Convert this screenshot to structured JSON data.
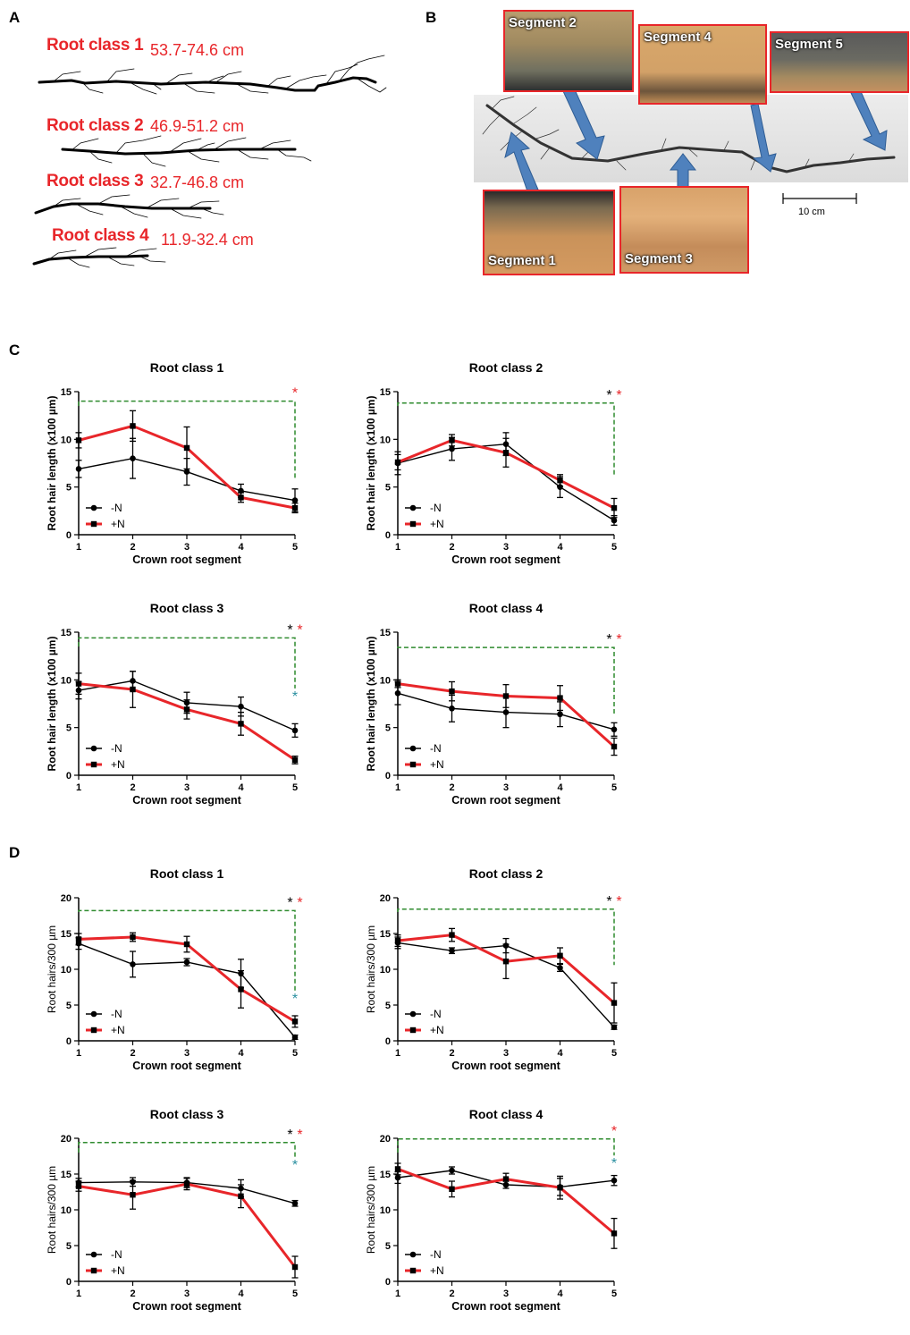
{
  "panels": {
    "A": "A",
    "B": "B",
    "C": "C",
    "D": "D"
  },
  "panelA": {
    "classes": [
      {
        "label": "Root class 1",
        "range": "53.7-74.6 cm"
      },
      {
        "label": "Root class 2",
        "range": "46.9-51.2 cm"
      },
      {
        "label": "Root class 3",
        "range": "32.7-46.8 cm"
      },
      {
        "label": "Root class 4",
        "range": "11.9-32.4 cm"
      }
    ]
  },
  "panelB": {
    "segments": [
      "Segment 1",
      "Segment 2",
      "Segment 3",
      "Segment 4",
      "Segment 5"
    ],
    "scale_label": "10 cm"
  },
  "colors": {
    "minusN": "#000000",
    "plusN": "#e8262a",
    "bracket": "#2e8b2e",
    "teal_star": "#2a8fa0",
    "label_red": "#e8262a",
    "arrow": "#4f81bd"
  },
  "chart_data": [
    {
      "id": "C1",
      "type": "line",
      "title": "Root class 1",
      "xlabel": "Crown root segment",
      "ylabel": "Root hair length (x100 µm)",
      "categories": [
        "1",
        "2",
        "3",
        "4",
        "5"
      ],
      "ylim": [
        0,
        15
      ],
      "yticks": [
        "0",
        "5",
        "10",
        "15"
      ],
      "series": [
        {
          "name": "-N",
          "values": [
            6.9,
            8.0,
            6.6,
            4.6,
            3.6
          ],
          "err": [
            0.9,
            2.1,
            1.4,
            0.7,
            1.2
          ]
        },
        {
          "name": "+N",
          "values": [
            9.9,
            11.4,
            9.1,
            3.9,
            2.8
          ],
          "err": [
            0.8,
            1.6,
            2.2,
            0.5,
            0.5
          ]
        }
      ],
      "stars": [
        {
          "symbol": "*",
          "color": "red"
        }
      ],
      "teal": false,
      "bracket_top": 14.0
    },
    {
      "id": "C2",
      "type": "line",
      "title": "Root class 2",
      "xlabel": "Crown root segment",
      "ylabel": "Root hair length (x100 µm)",
      "categories": [
        "1",
        "2",
        "3",
        "4",
        "5"
      ],
      "ylim": [
        0,
        15
      ],
      "yticks": [
        "0",
        "5",
        "10",
        "15"
      ],
      "series": [
        {
          "name": "-N",
          "values": [
            7.5,
            9.0,
            9.5,
            5.0,
            1.5
          ],
          "err": [
            1.2,
            1.2,
            1.2,
            1.1,
            0.5
          ]
        },
        {
          "name": "+N",
          "values": [
            7.6,
            9.9,
            8.6,
            5.7,
            2.8
          ],
          "err": [
            0.8,
            0.6,
            1.5,
            0.6,
            1.0
          ]
        }
      ],
      "stars": [
        {
          "symbol": "*",
          "color": "black"
        },
        {
          "symbol": "*",
          "color": "red"
        }
      ],
      "teal": false,
      "bracket_top": 13.8
    },
    {
      "id": "C3",
      "type": "line",
      "title": "Root class 3",
      "xlabel": "Crown root segment",
      "ylabel": "Root hair length (x100 µm)",
      "categories": [
        "1",
        "2",
        "3",
        "4",
        "5"
      ],
      "ylim": [
        0,
        15
      ],
      "yticks": [
        "0",
        "5",
        "10",
        "15"
      ],
      "series": [
        {
          "name": "-N",
          "values": [
            8.9,
            9.9,
            7.6,
            7.2,
            4.7
          ],
          "err": [
            0.9,
            1.0,
            1.1,
            1.0,
            0.7
          ]
        },
        {
          "name": "+N",
          "values": [
            9.6,
            9.0,
            6.9,
            5.4,
            1.6
          ],
          "err": [
            1.1,
            1.9,
            1.0,
            1.2,
            0.4
          ]
        }
      ],
      "stars": [
        {
          "symbol": "*",
          "color": "black"
        },
        {
          "symbol": "*",
          "color": "red"
        }
      ],
      "teal": true,
      "bracket_top": 14.4
    },
    {
      "id": "C4",
      "type": "line",
      "title": "Root class 4",
      "xlabel": "Crown root segment",
      "ylabel": "Root hair length (x100 µm)",
      "categories": [
        "1",
        "2",
        "3",
        "4",
        "5"
      ],
      "ylim": [
        0,
        15
      ],
      "yticks": [
        "0",
        "5",
        "10",
        "15"
      ],
      "series": [
        {
          "name": "-N",
          "values": [
            8.6,
            7.0,
            6.6,
            6.4,
            4.8
          ],
          "err": [
            1.2,
            1.4,
            1.6,
            1.3,
            0.7
          ]
        },
        {
          "name": "+N",
          "values": [
            9.6,
            8.8,
            8.3,
            8.1,
            3.0
          ],
          "err": [
            0.4,
            1.0,
            1.2,
            1.3,
            0.9
          ]
        }
      ],
      "stars": [
        {
          "symbol": "*",
          "color": "black"
        },
        {
          "symbol": "*",
          "color": "red"
        }
      ],
      "teal": false,
      "bracket_top": 13.4
    },
    {
      "id": "D1",
      "type": "line",
      "title": "Root class 1",
      "xlabel": "Crown root segment",
      "ylabel": "Root hairs/300 µm",
      "categories": [
        "1",
        "2",
        "3",
        "4",
        "5"
      ],
      "ylim": [
        0,
        20
      ],
      "yticks": [
        "0",
        "5",
        "10",
        "15",
        "20"
      ],
      "series": [
        {
          "name": "-N",
          "values": [
            13.6,
            10.7,
            11.0,
            9.4,
            0.5
          ],
          "err": [
            0.8,
            1.8,
            0.5,
            2.0,
            0.3
          ]
        },
        {
          "name": "+N",
          "values": [
            14.2,
            14.5,
            13.5,
            7.2,
            2.7
          ],
          "err": [
            0.8,
            0.6,
            1.1,
            2.6,
            0.8
          ]
        }
      ],
      "stars": [
        {
          "symbol": "*",
          "color": "black"
        },
        {
          "symbol": "*",
          "color": "red"
        }
      ],
      "teal": true,
      "bracket_top": 18.2
    },
    {
      "id": "D2",
      "type": "line",
      "title": "Root class 2",
      "xlabel": "Crown root segment",
      "ylabel": "Root hairs/300 µm",
      "categories": [
        "1",
        "2",
        "3",
        "4",
        "5"
      ],
      "ylim": [
        0,
        20
      ],
      "yticks": [
        "0",
        "5",
        "10",
        "15",
        "20"
      ],
      "series": [
        {
          "name": "-N",
          "values": [
            13.7,
            12.6,
            13.3,
            10.2,
            1.9
          ],
          "err": [
            0.8,
            0.4,
            1.0,
            0.5,
            0.3
          ]
        },
        {
          "name": "+N",
          "values": [
            14.0,
            14.8,
            11.1,
            11.9,
            5.3
          ],
          "err": [
            0.8,
            0.9,
            2.4,
            1.1,
            2.8
          ]
        }
      ],
      "stars": [
        {
          "symbol": "*",
          "color": "black"
        },
        {
          "symbol": "*",
          "color": "red"
        }
      ],
      "teal": false,
      "bracket_top": 18.4
    },
    {
      "id": "D3",
      "type": "line",
      "title": "Root class 3",
      "xlabel": "Crown root segment",
      "ylabel": "Root hairs/300 µm",
      "categories": [
        "1",
        "2",
        "3",
        "4",
        "5"
      ],
      "ylim": [
        0,
        20
      ],
      "yticks": [
        "0",
        "5",
        "10",
        "15",
        "20"
      ],
      "series": [
        {
          "name": "-N",
          "values": [
            13.8,
            13.9,
            13.8,
            13.0,
            10.9
          ],
          "err": [
            0.6,
            0.6,
            0.7,
            1.2,
            0.4
          ]
        },
        {
          "name": "+N",
          "values": [
            13.3,
            12.1,
            13.6,
            11.9,
            2.0
          ],
          "err": [
            0.7,
            2.0,
            0.8,
            1.6,
            1.5
          ]
        }
      ],
      "stars": [
        {
          "symbol": "*",
          "color": "black"
        },
        {
          "symbol": "*",
          "color": "red"
        }
      ],
      "teal": true,
      "bracket_top": 19.4
    },
    {
      "id": "D4",
      "type": "line",
      "title": "Root class 4",
      "xlabel": "Crown root segment",
      "ylabel": "Root hairs/300 µm",
      "categories": [
        "1",
        "2",
        "3",
        "4",
        "5"
      ],
      "ylim": [
        0,
        20
      ],
      "yticks": [
        "0",
        "5",
        "10",
        "15",
        "20"
      ],
      "series": [
        {
          "name": "-N",
          "values": [
            14.5,
            15.5,
            13.5,
            13.2,
            14.1
          ],
          "err": [
            0.8,
            0.5,
            0.5,
            1.2,
            0.7
          ]
        },
        {
          "name": "+N",
          "values": [
            15.7,
            12.9,
            14.3,
            13.1,
            6.7
          ],
          "err": [
            0.8,
            1.1,
            0.8,
            1.6,
            2.1
          ]
        }
      ],
      "stars": [
        {
          "symbol": "*",
          "color": "red"
        }
      ],
      "teal": true,
      "bracket_top": 19.9
    }
  ]
}
